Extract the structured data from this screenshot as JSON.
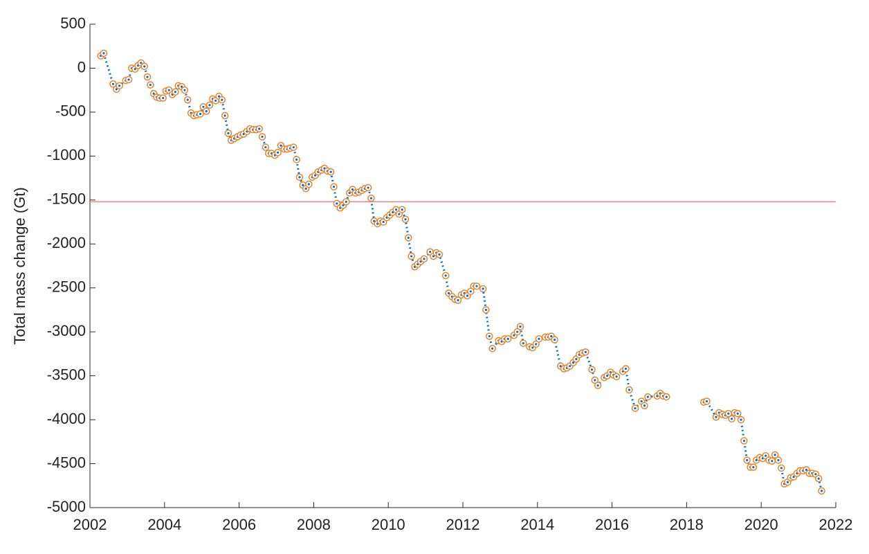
{
  "chart_data": {
    "type": "line",
    "ylabel": "Total mass change (Gt)",
    "xlim": [
      2002,
      2022
    ],
    "xticks": [
      2002,
      2004,
      2006,
      2008,
      2010,
      2012,
      2014,
      2016,
      2018,
      2020,
      2022
    ],
    "ylim": [
      -5000,
      500
    ],
    "yticks": [
      -5000,
      -4500,
      -4000,
      -3500,
      -3000,
      -2500,
      -2000,
      -1500,
      -1000,
      -500,
      0,
      500
    ],
    "grid": false,
    "hline": {
      "value": -1520,
      "color": "#f08080"
    },
    "x": [
      2002.29,
      2002.37,
      2002.62,
      2002.71,
      2002.79,
      2002.96,
      2003.04,
      2003.12,
      2003.21,
      2003.29,
      2003.37,
      2003.46,
      2003.54,
      2003.62,
      2003.71,
      2003.79,
      2003.87,
      2003.96,
      2004.04,
      2004.12,
      2004.21,
      2004.29,
      2004.37,
      2004.46,
      2004.54,
      2004.62,
      2004.71,
      2004.79,
      2004.87,
      2004.96,
      2005.04,
      2005.12,
      2005.21,
      2005.29,
      2005.37,
      2005.46,
      2005.54,
      2005.62,
      2005.71,
      2005.79,
      2005.87,
      2005.96,
      2006.04,
      2006.12,
      2006.21,
      2006.29,
      2006.37,
      2006.46,
      2006.54,
      2006.62,
      2006.71,
      2006.79,
      2006.87,
      2006.96,
      2007.04,
      2007.12,
      2007.21,
      2007.29,
      2007.37,
      2007.46,
      2007.54,
      2007.62,
      2007.71,
      2007.79,
      2007.87,
      2007.96,
      2008.04,
      2008.12,
      2008.21,
      2008.29,
      2008.37,
      2008.46,
      2008.54,
      2008.62,
      2008.71,
      2008.79,
      2008.87,
      2008.96,
      2009.04,
      2009.12,
      2009.21,
      2009.29,
      2009.37,
      2009.46,
      2009.54,
      2009.62,
      2009.71,
      2009.79,
      2009.87,
      2009.96,
      2010.04,
      2010.12,
      2010.21,
      2010.29,
      2010.37,
      2010.46,
      2010.54,
      2010.62,
      2010.71,
      2010.79,
      2010.87,
      2010.96,
      2011.12,
      2011.21,
      2011.29,
      2011.37,
      2011.54,
      2011.62,
      2011.71,
      2011.79,
      2011.87,
      2011.96,
      2012.04,
      2012.12,
      2012.21,
      2012.29,
      2012.37,
      2012.54,
      2012.62,
      2012.71,
      2012.79,
      2012.96,
      2013.04,
      2013.12,
      2013.21,
      2013.37,
      2013.46,
      2013.54,
      2013.62,
      2013.79,
      2013.87,
      2013.96,
      2014.04,
      2014.21,
      2014.29,
      2014.37,
      2014.46,
      2014.62,
      2014.71,
      2014.79,
      2014.87,
      2014.96,
      2015.04,
      2015.12,
      2015.21,
      2015.29,
      2015.46,
      2015.54,
      2015.62,
      2015.79,
      2015.87,
      2015.96,
      2016.04,
      2016.12,
      2016.29,
      2016.37,
      2016.46,
      2016.62,
      2016.79,
      2016.87,
      2016.96,
      2017.21,
      2017.29,
      2017.37,
      2017.46,
      2017.96,
      2018.46,
      2018.54,
      2018.79,
      2018.87,
      2018.96,
      2019.04,
      2019.12,
      2019.21,
      2019.29,
      2019.37,
      2019.46,
      2019.54,
      2019.62,
      2019.71,
      2019.79,
      2019.87,
      2019.96,
      2020.04,
      2020.12,
      2020.21,
      2020.29,
      2020.37,
      2020.46,
      2020.54,
      2020.62,
      2020.71,
      2020.79,
      2020.87,
      2020.96,
      2021.04,
      2021.12,
      2021.21,
      2021.29,
      2021.37,
      2021.46,
      2021.54,
      2021.62
    ],
    "series": [
      {
        "color": "#0072bd",
        "marker_color": "#e8822a",
        "values": [
          140,
          170,
          -180,
          -240,
          -200,
          -140,
          -130,
          0,
          -10,
          30,
          60,
          20,
          -100,
          -190,
          -290,
          -330,
          -340,
          -340,
          -260,
          -250,
          -300,
          -270,
          -200,
          -210,
          -250,
          -360,
          -510,
          -540,
          -530,
          -520,
          -440,
          -490,
          -420,
          -350,
          -370,
          -320,
          -360,
          -540,
          -740,
          -820,
          -800,
          -780,
          -760,
          -750,
          -720,
          -690,
          -700,
          -700,
          -690,
          -780,
          -900,
          -970,
          -970,
          -990,
          -960,
          -880,
          -920,
          -920,
          -910,
          -900,
          -1040,
          -1240,
          -1330,
          -1370,
          -1320,
          -1240,
          -1220,
          -1180,
          -1160,
          -1140,
          -1170,
          -1180,
          -1350,
          -1540,
          -1590,
          -1560,
          -1520,
          -1420,
          -1380,
          -1420,
          -1410,
          -1390,
          -1370,
          -1360,
          -1480,
          -1740,
          -1770,
          -1740,
          -1750,
          -1700,
          -1670,
          -1640,
          -1610,
          -1660,
          -1610,
          -1720,
          -1930,
          -2140,
          -2260,
          -2230,
          -2200,
          -2170,
          -2090,
          -2140,
          -2100,
          -2120,
          -2360,
          -2560,
          -2600,
          -2630,
          -2640,
          -2580,
          -2560,
          -2590,
          -2540,
          -2480,
          -2480,
          -2510,
          -2750,
          -3050,
          -3190,
          -3100,
          -3110,
          -3080,
          -3080,
          -3040,
          -3000,
          -2940,
          -3130,
          -3170,
          -3180,
          -3140,
          -3080,
          -3060,
          -3060,
          -3050,
          -3090,
          -3390,
          -3420,
          -3410,
          -3390,
          -3350,
          -3310,
          -3260,
          -3240,
          -3230,
          -3430,
          -3550,
          -3610,
          -3520,
          -3500,
          -3460,
          -3490,
          -3510,
          -3450,
          -3420,
          -3660,
          -3870,
          -3790,
          -3840,
          -3740,
          -3730,
          -3700,
          -3730,
          -3740,
          null,
          -3800,
          -3790,
          -3970,
          -3920,
          -3940,
          -3950,
          -3930,
          -3990,
          -3920,
          -3930,
          -4000,
          -4240,
          -4460,
          -4540,
          -4540,
          -4460,
          -4430,
          -4440,
          -4410,
          -4460,
          -4470,
          -4400,
          -4460,
          -4550,
          -4730,
          -4710,
          -4660,
          -4650,
          -4610,
          -4580,
          -4580,
          -4570,
          -4610,
          -4610,
          -4620,
          -4670,
          -4810
        ]
      }
    ]
  }
}
